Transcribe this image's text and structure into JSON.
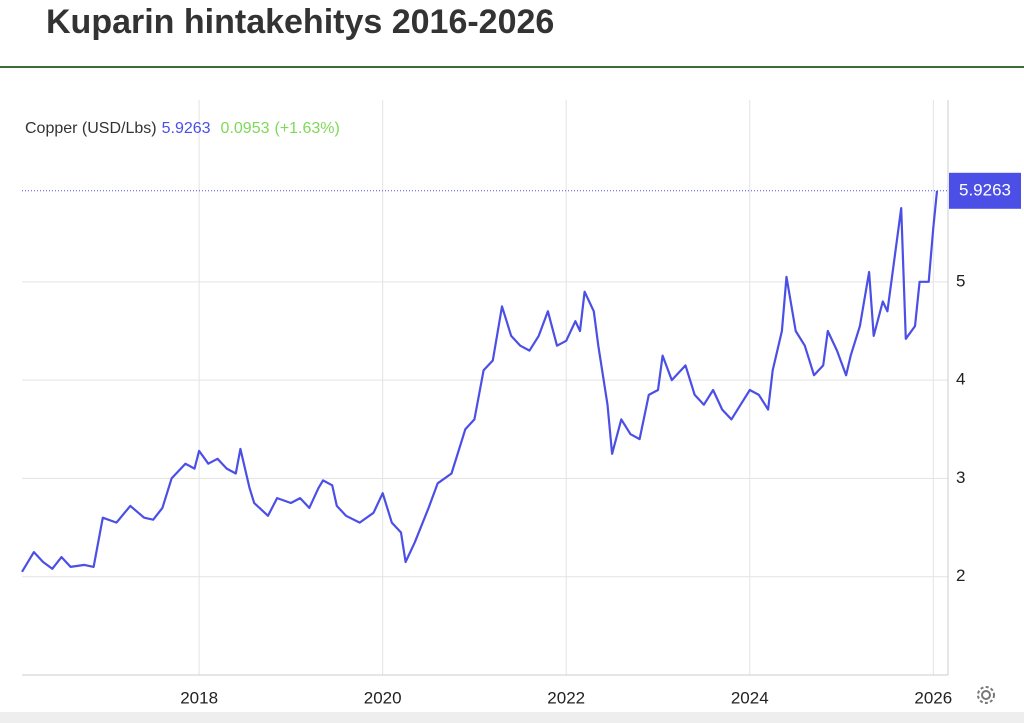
{
  "chart_data": {
    "type": "line",
    "title": "Kuparin hintakehitys 2016-2026",
    "series": [
      {
        "name": "Copper (USD/Lbs)",
        "color": "#4b4fe6",
        "values": [
          2.05,
          2.25,
          2.15,
          2.08,
          2.2,
          2.1,
          2.12,
          2.1,
          2.35,
          2.6,
          2.55,
          2.72,
          2.6,
          2.58,
          2.7,
          3.0,
          3.15,
          3.1,
          3.28,
          3.15,
          3.2,
          3.1,
          3.05,
          3.3,
          2.9,
          2.75,
          2.62,
          2.8,
          2.75,
          2.8,
          2.7,
          2.9,
          2.98,
          2.93,
          2.72,
          2.62,
          2.55,
          2.65,
          2.85,
          2.55,
          2.45,
          2.15,
          2.35,
          2.7,
          2.95,
          3.05,
          3.5,
          3.6,
          4.1,
          4.2,
          4.75,
          4.45,
          4.35,
          4.3,
          4.45,
          4.7,
          4.35,
          4.4,
          4.6,
          4.5,
          4.9,
          4.7,
          4.35,
          3.75,
          3.25,
          3.6,
          3.45,
          3.4,
          3.85,
          3.9,
          4.25,
          4.0,
          4.15,
          3.85,
          3.75,
          3.9,
          3.7,
          3.6,
          3.75,
          3.9,
          3.85,
          3.7,
          4.1,
          4.5,
          5.05,
          4.5,
          4.35,
          4.05,
          4.15,
          4.5,
          4.3,
          4.05,
          4.25,
          4.55,
          5.1,
          4.45,
          4.8,
          4.7,
          5.4,
          5.75,
          4.42,
          4.55,
          5.0,
          5.0,
          5.55,
          5.9263
        ]
      }
    ],
    "x": [
      2016.07,
      2016.2,
      2016.3,
      2016.4,
      2016.5,
      2016.6,
      2016.75,
      2016.85,
      2016.9,
      2016.95,
      2017.1,
      2017.25,
      2017.4,
      2017.5,
      2017.6,
      2017.7,
      2017.85,
      2017.95,
      2018.0,
      2018.1,
      2018.2,
      2018.3,
      2018.4,
      2018.45,
      2018.55,
      2018.6,
      2018.75,
      2018.85,
      2019.0,
      2019.1,
      2019.2,
      2019.3,
      2019.35,
      2019.45,
      2019.5,
      2019.6,
      2019.75,
      2019.9,
      2020.0,
      2020.1,
      2020.2,
      2020.25,
      2020.35,
      2020.5,
      2020.6,
      2020.75,
      2020.9,
      2021.0,
      2021.1,
      2021.2,
      2021.3,
      2021.4,
      2021.5,
      2021.6,
      2021.7,
      2021.8,
      2021.9,
      2022.0,
      2022.1,
      2022.15,
      2022.2,
      2022.3,
      2022.35,
      2022.45,
      2022.5,
      2022.6,
      2022.7,
      2022.8,
      2022.9,
      2023.0,
      2023.05,
      2023.15,
      2023.3,
      2023.4,
      2023.5,
      2023.6,
      2023.7,
      2023.8,
      2023.9,
      2024.0,
      2024.1,
      2024.2,
      2024.25,
      2024.35,
      2024.4,
      2024.5,
      2024.6,
      2024.7,
      2024.8,
      2024.85,
      2024.95,
      2025.05,
      2025.1,
      2025.2,
      2025.3,
      2025.35,
      2025.45,
      2025.5,
      2025.6,
      2025.65,
      2025.7,
      2025.8,
      2025.85,
      2025.95,
      2026.0,
      2026.04
    ],
    "last_value": 5.9263,
    "change": 0.0953,
    "change_label": "(+1.63%)",
    "change_color": "#7ed957",
    "xlim": [
      2016.07,
      2026.16
    ],
    "xticks": [
      2018,
      2020,
      2022,
      2024,
      2026
    ],
    "ylim": [
      1,
      6.85
    ],
    "yticks": [
      2,
      3,
      4,
      5
    ],
    "grid": true
  }
}
